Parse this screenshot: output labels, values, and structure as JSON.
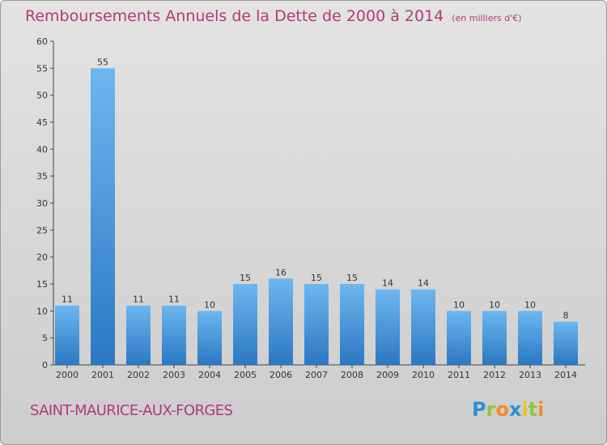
{
  "title": "Remboursements Annuels de la Dette de 2000 à 2014",
  "unit": "(en milliers d'€)",
  "commune": "SAINT-MAURICE-AUX-FORGES",
  "logo": {
    "text": "Proxiti",
    "letters": [
      {
        "ch": "P",
        "color": "#2f8fd6"
      },
      {
        "ch": "r",
        "color": "#8dc63f"
      },
      {
        "ch": "o",
        "color": "#f28c28"
      },
      {
        "ch": "x",
        "color": "#2f8fd6"
      },
      {
        "ch": "i",
        "color": "#e8c81d"
      },
      {
        "ch": "t",
        "color": "#8dc63f"
      },
      {
        "ch": "i",
        "color": "#f28c28"
      }
    ]
  },
  "colors": {
    "title": "#b03a78",
    "bar_top": "#6cb7f0",
    "bar_bottom": "#2b78c2",
    "background": "#d8d8d8"
  },
  "chart_data": {
    "type": "bar",
    "title": "Remboursements Annuels de la Dette de 2000 à 2014",
    "categories": [
      "2000",
      "2001",
      "2002",
      "2003",
      "2004",
      "2005",
      "2006",
      "2007",
      "2008",
      "2009",
      "2010",
      "2011",
      "2012",
      "2013",
      "2014"
    ],
    "values": [
      11,
      55,
      11,
      11,
      10,
      15,
      16,
      15,
      15,
      14,
      14,
      10,
      10,
      10,
      8
    ],
    "ylim": [
      0,
      60
    ],
    "yticks": [
      0,
      5,
      10,
      15,
      20,
      25,
      30,
      35,
      40,
      45,
      50,
      55,
      60
    ],
    "grid": false,
    "data_labels": true
  }
}
